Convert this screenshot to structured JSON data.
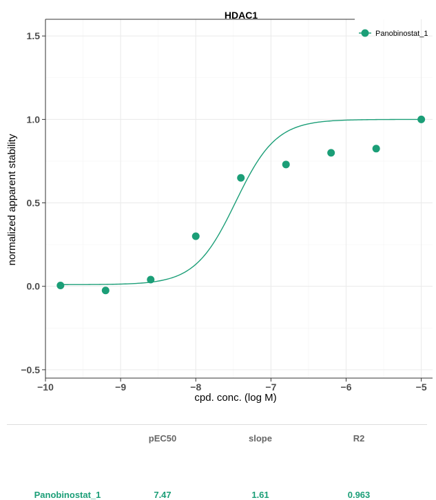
{
  "chart_data": {
    "type": "scatter",
    "title": "HDAC1",
    "xlabel": "cpd. conc. (log M)",
    "ylabel": "normalized apparent stability",
    "xlim": [
      -10,
      -4.85
    ],
    "ylim": [
      -0.55,
      1.6
    ],
    "x_ticks": [
      -10,
      -9,
      -8,
      -7,
      -6,
      -5
    ],
    "x_tick_labels": [
      "−10",
      "−9",
      "−8",
      "−7",
      "−6",
      "−5"
    ],
    "y_ticks": [
      -0.5,
      0.0,
      0.5,
      1.0,
      1.5
    ],
    "y_tick_labels": [
      "−0.5",
      "0.0",
      "0.5",
      "1.0",
      "1.5"
    ],
    "grid": true,
    "legend_position": "top-right",
    "color": "#1b9e77",
    "series": [
      {
        "name": "Panobinostat_1",
        "points": [
          {
            "x": -9.8,
            "y": 0.005
          },
          {
            "x": -9.2,
            "y": -0.025
          },
          {
            "x": -8.6,
            "y": 0.04
          },
          {
            "x": -8.0,
            "y": 0.3
          },
          {
            "x": -7.4,
            "y": 0.65
          },
          {
            "x": -6.8,
            "y": 0.73
          },
          {
            "x": -6.2,
            "y": 0.8
          },
          {
            "x": -5.6,
            "y": 0.825
          },
          {
            "x": -5.0,
            "y": 1.0
          }
        ],
        "fit": {
          "model": "sigmoid",
          "bottom": 0.01,
          "top": 1.0,
          "pEC50": 7.47,
          "slope": 1.61
        }
      }
    ]
  },
  "stats_table": {
    "headers": [
      "pEC50",
      "slope",
      "R2"
    ],
    "rows": [
      {
        "name": "Panobinostat_1",
        "pEC50": "7.47",
        "slope": "1.61",
        "R2": "0.963"
      }
    ]
  }
}
